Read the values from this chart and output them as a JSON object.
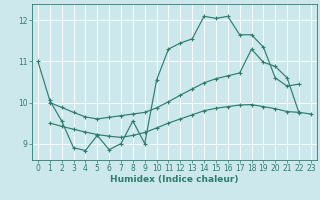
{
  "xlabel": "Humidex (Indice chaleur)",
  "background_color": "#cde8ec",
  "line_color": "#2d7d6e",
  "xlim": [
    -0.5,
    23.5
  ],
  "ylim": [
    8.6,
    12.4
  ],
  "yticks": [
    9,
    10,
    11,
    12
  ],
  "xticks": [
    0,
    1,
    2,
    3,
    4,
    5,
    6,
    7,
    8,
    9,
    10,
    11,
    12,
    13,
    14,
    15,
    16,
    17,
    18,
    19,
    20,
    21,
    22,
    23
  ],
  "line_top": {
    "x": [
      0,
      1,
      2,
      3,
      4,
      5,
      6,
      7,
      8,
      9,
      10,
      11,
      12,
      13,
      14,
      15,
      16,
      17,
      18,
      19,
      20,
      21,
      22
    ],
    "y": [
      11.0,
      10.05,
      9.55,
      8.9,
      8.83,
      9.2,
      8.85,
      9.0,
      9.55,
      9.0,
      10.55,
      11.3,
      11.45,
      11.55,
      12.1,
      12.05,
      12.1,
      11.65,
      11.65,
      11.35,
      10.6,
      10.4,
      10.45
    ]
  },
  "line_mid": {
    "x": [
      1,
      2,
      3,
      4,
      5,
      6,
      7,
      8,
      9,
      10,
      11,
      12,
      13,
      14,
      15,
      16,
      17,
      18,
      19,
      20,
      21,
      22
    ],
    "y": [
      10.0,
      9.88,
      9.76,
      9.65,
      9.6,
      9.64,
      9.68,
      9.72,
      9.76,
      9.87,
      10.02,
      10.18,
      10.33,
      10.48,
      10.58,
      10.65,
      10.72,
      11.3,
      10.98,
      10.88,
      10.6,
      9.75
    ]
  },
  "line_bot": {
    "x": [
      1,
      2,
      3,
      4,
      5,
      6,
      7,
      8,
      9,
      10,
      11,
      12,
      13,
      14,
      15,
      16,
      17,
      18,
      19,
      20,
      21,
      22,
      23
    ],
    "y": [
      9.5,
      9.42,
      9.35,
      9.28,
      9.22,
      9.18,
      9.15,
      9.2,
      9.27,
      9.38,
      9.5,
      9.6,
      9.7,
      9.8,
      9.86,
      9.9,
      9.94,
      9.95,
      9.9,
      9.85,
      9.78,
      9.76,
      9.72
    ]
  }
}
